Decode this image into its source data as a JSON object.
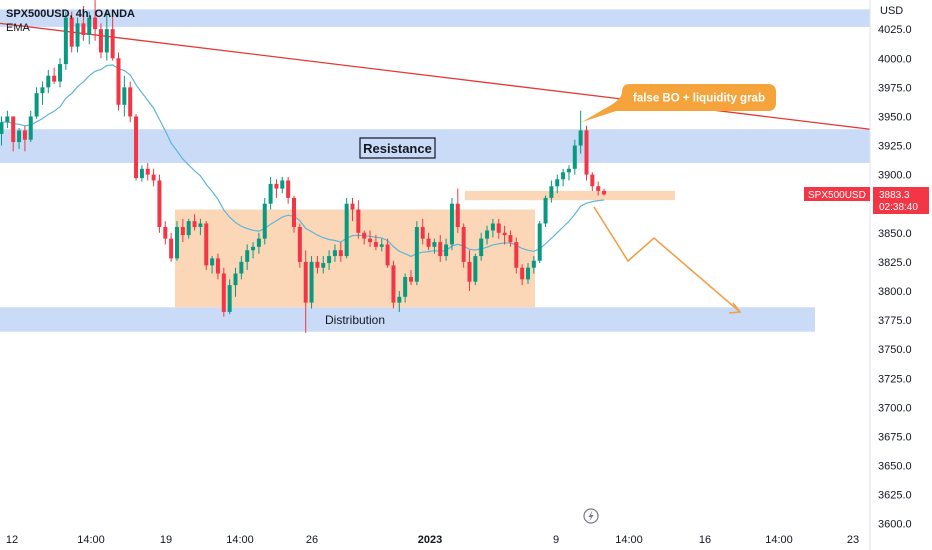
{
  "header": {
    "symbol_line": "SPX500USD, 4h, OANDA",
    "indicator": "EMA"
  },
  "price_axis": {
    "currency": "USD",
    "ticks": [
      "4025.0",
      "4000.0",
      "3975.0",
      "3950.0",
      "3925.0",
      "3900.0",
      "3875.0",
      "3850.0",
      "3825.0",
      "3800.0",
      "3775.0",
      "3750.0",
      "3725.0",
      "3700.0",
      "3675.0",
      "3650.0",
      "3625.0",
      "3600.0"
    ]
  },
  "price_badge": {
    "symbol": "SPX500USD",
    "price": "3883.3",
    "countdown": "02:38:40",
    "color": "#f23645"
  },
  "time_axis": {
    "ticks": [
      "12",
      "14:00",
      "19",
      "14:00",
      "26",
      "2023",
      "9",
      "14:00",
      "16",
      "14:00",
      "23"
    ]
  },
  "annotations": {
    "resistance_label": "Resistance",
    "distribution_label": "Distribution",
    "callout": "false BO + liquidity grab"
  },
  "colors": {
    "up": "#089981",
    "down": "#f23645",
    "ema": "#5fb6d6",
    "zone_blue": "#c9dbf7",
    "zone_orange": "#fbd7b8",
    "callout_bg": "#f5a33b",
    "projection": "#f0a04b",
    "trendline": "#e53935"
  },
  "chart_data": {
    "type": "candlestick",
    "title": "SPX500USD, 4h, OANDA",
    "ylabel": "USD",
    "ylim": [
      3600,
      4042
    ],
    "zones": [
      {
        "label": "",
        "price_from": 4027,
        "price_to": 4042
      },
      {
        "label": "Resistance",
        "price_from": 3910,
        "price_to": 3939
      },
      {
        "label": "Distribution",
        "price_from": 3765,
        "price_to": 3786
      }
    ],
    "series": [
      {
        "ohlc": [
          [
            3935,
            3950,
            3925,
            3945
          ],
          [
            3945,
            3955,
            3940,
            3950
          ],
          [
            3950,
            3950,
            3920,
            3928
          ],
          [
            3928,
            3940,
            3922,
            3938
          ],
          [
            3938,
            3942,
            3920,
            3930
          ],
          [
            3930,
            3955,
            3928,
            3950
          ],
          [
            3950,
            3975,
            3948,
            3970
          ],
          [
            3970,
            3980,
            3960,
            3975
          ],
          [
            3975,
            3990,
            3970,
            3985
          ],
          [
            3985,
            3992,
            3978,
            3980
          ],
          [
            3980,
            4000,
            3975,
            3995
          ],
          [
            3995,
            4040,
            3990,
            4035
          ],
          [
            4035,
            4040,
            4005,
            4010
          ],
          [
            4010,
            4035,
            4005,
            4030
          ],
          [
            4030,
            4045,
            4015,
            4020
          ],
          [
            4020,
            4040,
            4012,
            4035
          ],
          [
            4035,
            4050,
            4015,
            4025
          ],
          [
            4025,
            4030,
            4000,
            4005
          ],
          [
            4005,
            4040,
            3998,
            4025
          ],
          [
            4025,
            4040,
            3998,
            4000
          ],
          [
            4000,
            4005,
            3955,
            3960
          ],
          [
            3960,
            3985,
            3950,
            3975
          ],
          [
            3975,
            3980,
            3945,
            3950
          ],
          [
            3950,
            3952,
            3895,
            3897
          ],
          [
            3897,
            3908,
            3894,
            3905
          ],
          [
            3905,
            3910,
            3895,
            3900
          ],
          [
            3900,
            3905,
            3890,
            3895
          ],
          [
            3895,
            3900,
            3850,
            3855
          ],
          [
            3855,
            3860,
            3840,
            3845
          ],
          [
            3845,
            3850,
            3825,
            3828
          ],
          [
            3828,
            3860,
            3826,
            3855
          ],
          [
            3855,
            3862,
            3842,
            3848
          ],
          [
            3848,
            3862,
            3845,
            3860
          ],
          [
            3860,
            3866,
            3852,
            3855
          ],
          [
            3855,
            3862,
            3848,
            3858
          ],
          [
            3858,
            3860,
            3818,
            3822
          ],
          [
            3822,
            3830,
            3815,
            3828
          ],
          [
            3828,
            3832,
            3810,
            3815
          ],
          [
            3815,
            3820,
            3778,
            3782
          ],
          [
            3782,
            3810,
            3780,
            3805
          ],
          [
            3805,
            3820,
            3795,
            3815
          ],
          [
            3815,
            3830,
            3810,
            3825
          ],
          [
            3825,
            3840,
            3818,
            3835
          ],
          [
            3835,
            3842,
            3828,
            3838
          ],
          [
            3838,
            3850,
            3832,
            3845
          ],
          [
            3845,
            3880,
            3840,
            3875
          ],
          [
            3875,
            3898,
            3870,
            3892
          ],
          [
            3892,
            3896,
            3880,
            3888
          ],
          [
            3888,
            3898,
            3884,
            3895
          ],
          [
            3895,
            3898,
            3875,
            3880
          ],
          [
            3880,
            3882,
            3850,
            3855
          ],
          [
            3855,
            3858,
            3820,
            3825
          ],
          [
            3825,
            3835,
            3764,
            3790
          ],
          [
            3790,
            3830,
            3785,
            3825
          ],
          [
            3825,
            3830,
            3815,
            3820
          ],
          [
            3820,
            3830,
            3815,
            3824
          ],
          [
            3824,
            3835,
            3818,
            3830
          ],
          [
            3830,
            3840,
            3825,
            3835
          ],
          [
            3835,
            3842,
            3825,
            3830
          ],
          [
            3830,
            3880,
            3828,
            3875
          ],
          [
            3875,
            3880,
            3860,
            3870
          ],
          [
            3870,
            3878,
            3845,
            3850
          ],
          [
            3850,
            3852,
            3840,
            3845
          ],
          [
            3845,
            3852,
            3838,
            3842
          ],
          [
            3842,
            3848,
            3835,
            3838
          ],
          [
            3838,
            3845,
            3834,
            3840
          ],
          [
            3840,
            3845,
            3820,
            3822
          ],
          [
            3822,
            3826,
            3785,
            3790
          ],
          [
            3790,
            3800,
            3782,
            3795
          ],
          [
            3795,
            3815,
            3790,
            3812
          ],
          [
            3812,
            3818,
            3805,
            3808
          ],
          [
            3808,
            3860,
            3805,
            3855
          ],
          [
            3855,
            3862,
            3840,
            3845
          ],
          [
            3845,
            3850,
            3835,
            3838
          ],
          [
            3838,
            3845,
            3832,
            3842
          ],
          [
            3842,
            3848,
            3825,
            3830
          ],
          [
            3830,
            3845,
            3826,
            3840
          ],
          [
            3840,
            3880,
            3835,
            3875
          ],
          [
            3875,
            3888,
            3850,
            3855
          ],
          [
            3855,
            3858,
            3820,
            3825
          ],
          [
            3825,
            3835,
            3800,
            3808
          ],
          [
            3808,
            3832,
            3805,
            3830
          ],
          [
            3830,
            3850,
            3826,
            3845
          ],
          [
            3845,
            3856,
            3840,
            3852
          ],
          [
            3852,
            3862,
            3846,
            3858
          ],
          [
            3858,
            3862,
            3845,
            3850
          ],
          [
            3850,
            3856,
            3840,
            3848
          ],
          [
            3848,
            3852,
            3838,
            3842
          ],
          [
            3842,
            3846,
            3815,
            3820
          ],
          [
            3820,
            3823,
            3805,
            3810
          ],
          [
            3810,
            3824,
            3806,
            3820
          ],
          [
            3820,
            3830,
            3815,
            3826
          ],
          [
            3826,
            3860,
            3824,
            3858
          ],
          [
            3858,
            3882,
            3855,
            3880
          ],
          [
            3880,
            3895,
            3876,
            3890
          ],
          [
            3890,
            3900,
            3884,
            3896
          ],
          [
            3896,
            3905,
            3890,
            3902
          ],
          [
            3902,
            3908,
            3895,
            3905
          ],
          [
            3905,
            3930,
            3900,
            3925
          ],
          [
            3925,
            3955,
            3918,
            3938
          ],
          [
            3938,
            3942,
            3895,
            3900
          ],
          [
            3900,
            3902,
            3886,
            3890
          ],
          [
            3890,
            3894,
            3882,
            3886
          ],
          [
            3886,
            3888,
            3882,
            3883
          ]
        ]
      }
    ]
  }
}
